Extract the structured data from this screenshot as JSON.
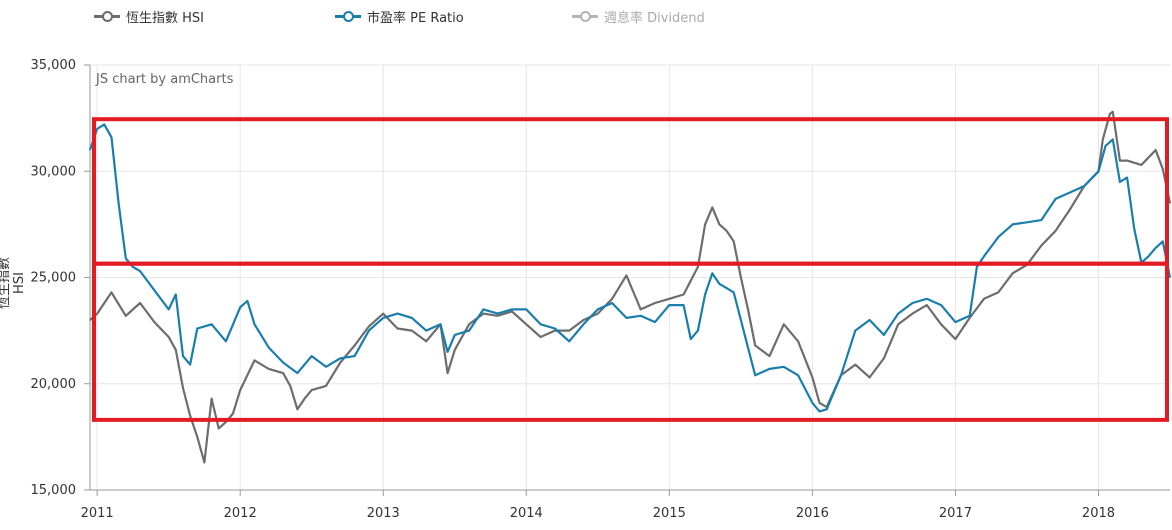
{
  "legend": [
    {
      "label": "恆生指數 HSI",
      "color": "#6d6d6d",
      "muted": false
    },
    {
      "label": "市盈率 PE Ratio",
      "color": "#1a7ead",
      "muted": false
    },
    {
      "label": "週息率 Dividend",
      "color": "#b4b4b4",
      "muted": true
    }
  ],
  "credit": "JS chart by amCharts",
  "chart_data": {
    "type": "line",
    "ylabel": "恆生指數 HSI",
    "ylim": [
      15000,
      35000
    ],
    "y_ticks": [
      "15,000",
      "20,000",
      "25,000",
      "30,000",
      "35,000"
    ],
    "y_tick_values": [
      15000,
      20000,
      25000,
      30000,
      35000
    ],
    "x_ticks": [
      "2011",
      "2012",
      "2013",
      "2014",
      "2015",
      "2016",
      "2017",
      "2018"
    ],
    "x_tick_values": [
      2011,
      2012,
      2013,
      2014,
      2015,
      2016,
      2017,
      2018
    ],
    "xlim": [
      2010.95,
      2018.5
    ],
    "grid": true,
    "legend_position": "top",
    "series": [
      {
        "name": "恆生指數 HSI",
        "color": "#6d6d6d",
        "x": [
          2010.95,
          2011.0,
          2011.1,
          2011.2,
          2011.3,
          2011.4,
          2011.5,
          2011.55,
          2011.6,
          2011.65,
          2011.7,
          2011.75,
          2011.8,
          2011.85,
          2011.9,
          2011.95,
          2012.0,
          2012.1,
          2012.2,
          2012.3,
          2012.35,
          2012.4,
          2012.45,
          2012.5,
          2012.6,
          2012.7,
          2012.8,
          2012.9,
          2013.0,
          2013.1,
          2013.2,
          2013.3,
          2013.4,
          2013.45,
          2013.5,
          2013.6,
          2013.7,
          2013.8,
          2013.9,
          2014.0,
          2014.1,
          2014.2,
          2014.3,
          2014.4,
          2014.5,
          2014.6,
          2014.7,
          2014.8,
          2014.9,
          2015.0,
          2015.1,
          2015.2,
          2015.25,
          2015.3,
          2015.35,
          2015.4,
          2015.45,
          2015.5,
          2015.55,
          2015.6,
          2015.7,
          2015.8,
          2015.9,
          2016.0,
          2016.05,
          2016.1,
          2016.2,
          2016.3,
          2016.4,
          2016.5,
          2016.6,
          2016.7,
          2016.8,
          2016.9,
          2017.0,
          2017.1,
          2017.2,
          2017.3,
          2017.4,
          2017.5,
          2017.6,
          2017.7,
          2017.8,
          2017.9,
          2018.0,
          2018.03,
          2018.08,
          2018.1,
          2018.15,
          2018.2,
          2018.3,
          2018.4,
          2018.45,
          2018.5
        ],
        "values": [
          23000,
          23300,
          24300,
          23200,
          23800,
          22900,
          22200,
          21600,
          19800,
          18500,
          17500,
          16300,
          19300,
          17900,
          18200,
          18600,
          19700,
          21100,
          20700,
          20500,
          19900,
          18800,
          19300,
          19700,
          19900,
          21000,
          21800,
          22700,
          23300,
          22600,
          22500,
          22000,
          22800,
          20500,
          21600,
          22800,
          23300,
          23200,
          23400,
          22800,
          22200,
          22500,
          22500,
          23000,
          23300,
          24000,
          25100,
          23500,
          23800,
          24000,
          24200,
          25500,
          27500,
          28300,
          27500,
          27200,
          26700,
          25000,
          23500,
          21800,
          21300,
          22800,
          22000,
          20300,
          19100,
          18900,
          20400,
          20900,
          20300,
          21200,
          22800,
          23300,
          23700,
          22800,
          22100,
          23100,
          24000,
          24300,
          25200,
          25600,
          26500,
          27200,
          28200,
          29300,
          30000,
          31500,
          32700,
          32800,
          30500,
          30500,
          30300,
          31000,
          30100,
          28500
        ]
      },
      {
        "name": "市盈率 PE Ratio",
        "color": "#1a7ead",
        "x": [
          2010.95,
          2011.0,
          2011.05,
          2011.1,
          2011.15,
          2011.2,
          2011.25,
          2011.3,
          2011.4,
          2011.5,
          2011.55,
          2011.6,
          2011.65,
          2011.7,
          2011.8,
          2011.9,
          2012.0,
          2012.05,
          2012.1,
          2012.2,
          2012.3,
          2012.4,
          2012.5,
          2012.6,
          2012.7,
          2012.8,
          2012.9,
          2013.0,
          2013.1,
          2013.2,
          2013.3,
          2013.4,
          2013.45,
          2013.5,
          2013.6,
          2013.7,
          2013.8,
          2013.9,
          2014.0,
          2014.1,
          2014.2,
          2014.3,
          2014.4,
          2014.5,
          2014.6,
          2014.7,
          2014.8,
          2014.9,
          2015.0,
          2015.1,
          2015.15,
          2015.2,
          2015.25,
          2015.3,
          2015.35,
          2015.4,
          2015.45,
          2015.5,
          2015.55,
          2015.6,
          2015.7,
          2015.8,
          2015.9,
          2016.0,
          2016.05,
          2016.1,
          2016.2,
          2016.3,
          2016.4,
          2016.5,
          2016.6,
          2016.7,
          2016.8,
          2016.9,
          2017.0,
          2017.1,
          2017.15,
          2017.2,
          2017.3,
          2017.4,
          2017.5,
          2017.6,
          2017.7,
          2017.8,
          2017.9,
          2018.0,
          2018.05,
          2018.1,
          2018.15,
          2018.2,
          2018.25,
          2018.3,
          2018.35,
          2018.4,
          2018.45,
          2018.5
        ],
        "values": [
          31000,
          32000,
          32200,
          31600,
          28500,
          25900,
          25500,
          25300,
          24400,
          23500,
          24200,
          21300,
          20900,
          22600,
          22800,
          22000,
          23600,
          23900,
          22800,
          21700,
          21000,
          20500,
          21300,
          20800,
          21200,
          21300,
          22500,
          23100,
          23300,
          23100,
          22500,
          22800,
          21500,
          22300,
          22500,
          23500,
          23300,
          23500,
          23500,
          22800,
          22600,
          22000,
          22800,
          23500,
          23800,
          23100,
          23200,
          22900,
          23700,
          23700,
          22100,
          22500,
          24200,
          25200,
          24700,
          24500,
          24300,
          23000,
          21700,
          20400,
          20700,
          20800,
          20400,
          19100,
          18700,
          18800,
          20400,
          22500,
          23000,
          22300,
          23300,
          23800,
          24000,
          23700,
          22900,
          23200,
          25500,
          26000,
          26900,
          27500,
          27600,
          27700,
          28700,
          29000,
          29300,
          30000,
          31200,
          31500,
          29500,
          29700,
          27300,
          25700,
          26000,
          26400,
          26700,
          25000
        ]
      },
      {
        "name": "週息率 Dividend",
        "color": "#b4b4b4",
        "x": [],
        "values": []
      }
    ]
  },
  "highlights": [
    {
      "y_top": 32450,
      "y_bottom": 25650
    },
    {
      "y_top": 25650,
      "y_bottom": 18300
    }
  ],
  "highlight_color": "#e31c23"
}
